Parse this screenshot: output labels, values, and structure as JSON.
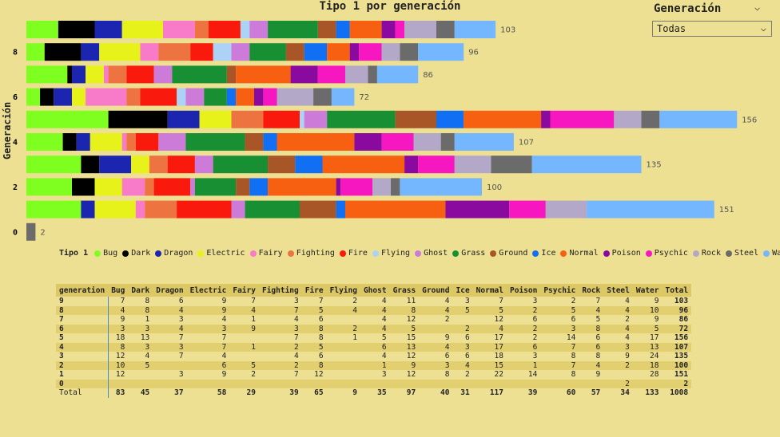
{
  "chart_data": {
    "type": "bar",
    "title": "Tipo 1 por generación",
    "ylabel": "Generación",
    "y_ticks": [
      "8",
      "6",
      "4",
      "2",
      "0"
    ],
    "legend_title": "Tipo 1",
    "types": [
      "Bug",
      "Dark",
      "Dragon",
      "Electric",
      "Fairy",
      "Fighting",
      "Fire",
      "Flying",
      "Ghost",
      "Grass",
      "Ground",
      "Ice",
      "Normal",
      "Poison",
      "Psychic",
      "Rock",
      "Steel",
      "Water"
    ],
    "colors": [
      "#7fff1f",
      "#000000",
      "#1c25b0",
      "#e7f21b",
      "#f77bc8",
      "#ed7340",
      "#fa190d",
      "#acd2f5",
      "#cc7bd9",
      "#188f33",
      "#a85527",
      "#106ff2",
      "#f76010",
      "#8a0aa0",
      "#f717c1",
      "#b3a8c7",
      "#6b6b6b",
      "#74b7ff"
    ],
    "generations": [
      "9",
      "8",
      "7",
      "6",
      "5",
      "4",
      "3",
      "2",
      "1",
      "0"
    ],
    "series": [
      {
        "generation": "9",
        "values": [
          7,
          8,
          6,
          9,
          7,
          3,
          7,
          2,
          4,
          11,
          4,
          3,
          7,
          3,
          2,
          7,
          4,
          9
        ],
        "total": 103
      },
      {
        "generation": "8",
        "values": [
          4,
          8,
          4,
          9,
          4,
          7,
          5,
          4,
          4,
          8,
          4,
          5,
          5,
          2,
          5,
          4,
          4,
          10
        ],
        "total": 96
      },
      {
        "generation": "7",
        "values": [
          9,
          1,
          3,
          4,
          1,
          4,
          6,
          0,
          4,
          12,
          2,
          0,
          12,
          6,
          6,
          5,
          2,
          9
        ],
        "total": 86
      },
      {
        "generation": "6",
        "values": [
          3,
          3,
          4,
          3,
          9,
          3,
          8,
          2,
          4,
          5,
          0,
          2,
          4,
          2,
          3,
          8,
          4,
          5
        ],
        "total": 72
      },
      {
        "generation": "5",
        "values": [
          18,
          13,
          7,
          7,
          0,
          7,
          8,
          1,
          5,
          15,
          9,
          6,
          17,
          2,
          14,
          6,
          4,
          17
        ],
        "total": 156
      },
      {
        "generation": "4",
        "values": [
          8,
          3,
          3,
          7,
          1,
          2,
          5,
          0,
          6,
          13,
          4,
          3,
          17,
          6,
          7,
          6,
          3,
          13
        ],
        "total": 107
      },
      {
        "generation": "3",
        "values": [
          12,
          4,
          7,
          4,
          0,
          4,
          6,
          0,
          4,
          12,
          6,
          6,
          18,
          3,
          8,
          8,
          9,
          24
        ],
        "total": 135
      },
      {
        "generation": "2",
        "values": [
          10,
          5,
          0,
          6,
          5,
          2,
          8,
          0,
          1,
          9,
          3,
          4,
          15,
          1,
          7,
          4,
          2,
          18
        ],
        "total": 100
      },
      {
        "generation": "1",
        "values": [
          12,
          0,
          3,
          9,
          2,
          7,
          12,
          0,
          3,
          12,
          8,
          2,
          22,
          14,
          8,
          9,
          0,
          28
        ],
        "total": 151
      },
      {
        "generation": "0",
        "values": [
          0,
          0,
          0,
          0,
          0,
          0,
          0,
          0,
          0,
          0,
          0,
          0,
          0,
          0,
          0,
          0,
          2,
          0
        ],
        "total": 2
      }
    ]
  },
  "slicer": {
    "title": "Generación",
    "value": "Todas",
    "chevron": "⌵"
  },
  "table": {
    "headers": [
      "generation",
      "Bug",
      "Dark",
      "Dragon",
      "Electric",
      "Fairy",
      "Fighting",
      "Fire",
      "Flying",
      "Ghost",
      "Grass",
      "Ground",
      "Ice",
      "Normal",
      "Poison",
      "Psychic",
      "Rock",
      "Steel",
      "Water",
      "Total"
    ],
    "rows": [
      [
        "9",
        "7",
        "8",
        "6",
        "9",
        "7",
        "3",
        "7",
        "2",
        "4",
        "11",
        "4",
        "3",
        "7",
        "3",
        "2",
        "7",
        "4",
        "9",
        "103"
      ],
      [
        "8",
        "4",
        "8",
        "4",
        "9",
        "4",
        "7",
        "5",
        "4",
        "4",
        "8",
        "4",
        "5",
        "5",
        "2",
        "5",
        "4",
        "4",
        "10",
        "96"
      ],
      [
        "7",
        "9",
        "1",
        "3",
        "4",
        "1",
        "4",
        "6",
        "",
        "4",
        "12",
        "2",
        "",
        "12",
        "6",
        "6",
        "5",
        "2",
        "9",
        "86"
      ],
      [
        "6",
        "3",
        "3",
        "4",
        "3",
        "9",
        "3",
        "8",
        "2",
        "4",
        "5",
        "",
        "2",
        "4",
        "2",
        "3",
        "8",
        "4",
        "5",
        "72"
      ],
      [
        "5",
        "18",
        "13",
        "7",
        "7",
        "",
        "7",
        "8",
        "1",
        "5",
        "15",
        "9",
        "6",
        "17",
        "2",
        "14",
        "6",
        "4",
        "17",
        "156"
      ],
      [
        "4",
        "8",
        "3",
        "3",
        "7",
        "1",
        "2",
        "5",
        "",
        "6",
        "13",
        "4",
        "3",
        "17",
        "6",
        "7",
        "6",
        "3",
        "13",
        "107"
      ],
      [
        "3",
        "12",
        "4",
        "7",
        "4",
        "",
        "4",
        "6",
        "",
        "4",
        "12",
        "6",
        "6",
        "18",
        "3",
        "8",
        "8",
        "9",
        "24",
        "135"
      ],
      [
        "2",
        "10",
        "5",
        "",
        "6",
        "5",
        "2",
        "8",
        "",
        "1",
        "9",
        "3",
        "4",
        "15",
        "1",
        "7",
        "4",
        "2",
        "18",
        "100"
      ],
      [
        "1",
        "12",
        "",
        "3",
        "9",
        "2",
        "7",
        "12",
        "",
        "3",
        "12",
        "8",
        "2",
        "22",
        "14",
        "8",
        "9",
        "",
        "28",
        "151"
      ],
      [
        "0",
        "",
        "",
        "",
        "",
        "",
        "",
        "",
        "",
        "",
        "",
        "",
        "",
        "",
        "",
        "",
        "",
        "2",
        "",
        "2"
      ]
    ],
    "total_row": [
      "Total",
      "83",
      "45",
      "37",
      "58",
      "29",
      "39",
      "65",
      "9",
      "35",
      "97",
      "40",
      "31",
      "117",
      "39",
      "60",
      "57",
      "34",
      "133",
      "1008"
    ]
  }
}
